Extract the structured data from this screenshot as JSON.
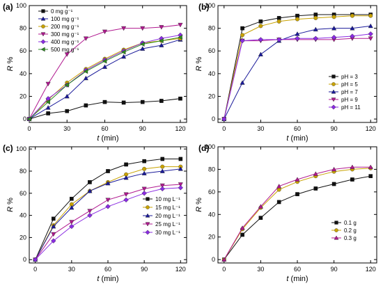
{
  "chart_data": [
    {
      "panel_label": "(a)",
      "type": "line",
      "xlabel": "t (min)",
      "ylabel": "R %",
      "xlim": [
        0,
        125
      ],
      "ylim": [
        -3,
        100
      ],
      "xticks": [
        0,
        30,
        60,
        90,
        120
      ],
      "yticks": [
        0,
        20,
        40,
        60,
        80,
        100
      ],
      "legend_position": "top-left",
      "x": [
        0,
        15,
        30,
        45,
        60,
        75,
        90,
        105,
        120
      ],
      "series": [
        {
          "name": "0 mg g⁻¹",
          "color": "#111111",
          "marker": "square",
          "values": [
            0,
            5,
            7,
            12,
            15,
            14.5,
            15,
            16,
            18
          ]
        },
        {
          "name": "100 mg g⁻¹",
          "color": "#1a1a9a",
          "marker": "triangle-up",
          "values": [
            0,
            10,
            20,
            36,
            46,
            55,
            62,
            65,
            70
          ]
        },
        {
          "name": "200 mg g⁻¹",
          "color": "#c8a200",
          "marker": "circle",
          "values": [
            0,
            17,
            32,
            44,
            53,
            61,
            67,
            69,
            71
          ]
        },
        {
          "name": "300 mg g⁻¹",
          "color": "#b0188f",
          "marker": "triangle-down",
          "values": [
            0,
            31,
            57,
            71,
            77,
            80,
            80,
            81,
            83
          ]
        },
        {
          "name": "400 mg g⁻¹",
          "color": "#8a2be2",
          "marker": "diamond",
          "values": [
            0,
            18,
            30,
            43,
            52,
            60,
            67,
            71,
            74
          ]
        },
        {
          "name": "500 mg g⁻¹",
          "color": "#2e8b20",
          "marker": "triangle-left",
          "values": [
            0,
            15,
            30,
            42,
            51,
            59,
            66,
            69,
            72
          ]
        }
      ]
    },
    {
      "panel_label": "(b)",
      "type": "line",
      "xlabel": "t (min)",
      "ylabel": "R %",
      "xlim": [
        -5,
        125
      ],
      "ylim": [
        -3,
        100
      ],
      "xticks": [
        0,
        30,
        60,
        90,
        120
      ],
      "yticks": [
        0,
        20,
        40,
        60,
        80,
        100
      ],
      "legend_position": "bottom-right",
      "x": [
        0,
        15,
        30,
        45,
        60,
        75,
        90,
        105,
        120
      ],
      "series": [
        {
          "name": "pH = 3",
          "color": "#111111",
          "marker": "square",
          "values": [
            0,
            80,
            86,
            89,
            91,
            92,
            92,
            92,
            92
          ]
        },
        {
          "name": "pH = 5",
          "color": "#c8a200",
          "marker": "circle",
          "values": [
            0,
            74,
            82,
            86,
            88,
            89,
            90,
            91,
            91
          ]
        },
        {
          "name": "pH = 7",
          "color": "#1a1a9a",
          "marker": "triangle-up",
          "values": [
            0,
            32,
            57,
            69,
            75,
            79,
            80,
            80,
            82
          ]
        },
        {
          "name": "pH = 9",
          "color": "#b0188f",
          "marker": "triangle-down",
          "values": [
            0,
            69,
            69,
            70,
            70,
            70,
            70,
            71,
            71
          ]
        },
        {
          "name": "pH = 11",
          "color": "#8a2be2",
          "marker": "diamond",
          "values": [
            0,
            69,
            70,
            70,
            71,
            71,
            72,
            73,
            75
          ]
        }
      ]
    },
    {
      "panel_label": "(c)",
      "type": "line",
      "xlabel": "t (min)",
      "ylabel": "R %",
      "xlim": [
        -5,
        125
      ],
      "ylim": [
        -3,
        102
      ],
      "xticks": [
        0,
        30,
        60,
        90,
        120
      ],
      "yticks": [
        0,
        20,
        40,
        60,
        80,
        100
      ],
      "legend_position": "bottom-right",
      "x": [
        0,
        15,
        30,
        45,
        60,
        75,
        90,
        105,
        120
      ],
      "series": [
        {
          "name": "10 mg L⁻¹",
          "color": "#111111",
          "marker": "square",
          "values": [
            0,
            37,
            55,
            70,
            80,
            86,
            89,
            91,
            91
          ]
        },
        {
          "name": "15 mg L⁻¹",
          "color": "#c8a200",
          "marker": "circle",
          "values": [
            0,
            31,
            50,
            62,
            70,
            77,
            82,
            84,
            84
          ]
        },
        {
          "name": "20 mg L⁻¹",
          "color": "#1a1a9a",
          "marker": "triangle-up",
          "values": [
            0,
            30,
            47,
            62,
            69,
            74,
            78,
            80,
            82
          ]
        },
        {
          "name": "25 mg L⁻¹",
          "color": "#b0188f",
          "marker": "triangle-down",
          "values": [
            0,
            23,
            34,
            44,
            54,
            59,
            64,
            67,
            68
          ]
        },
        {
          "name": "30 mg L⁻¹",
          "color": "#8a2be2",
          "marker": "diamond",
          "values": [
            0,
            17,
            30,
            40,
            48,
            54,
            60,
            64,
            65
          ]
        }
      ]
    },
    {
      "panel_label": "(d)",
      "type": "line",
      "xlabel": "t (min)",
      "ylabel": "R %",
      "xlim": [
        -5,
        125
      ],
      "ylim": [
        -3,
        100
      ],
      "xticks": [
        0,
        30,
        60,
        90,
        120
      ],
      "yticks": [
        0,
        20,
        40,
        60,
        80,
        100
      ],
      "legend_position": "bottom-right",
      "x": [
        0,
        15,
        30,
        45,
        60,
        75,
        90,
        105,
        120
      ],
      "series": [
        {
          "name": "0.1 g",
          "color": "#111111",
          "marker": "square",
          "values": [
            0,
            22,
            37,
            51,
            58,
            63,
            67,
            71,
            74
          ]
        },
        {
          "name": "0.2 g",
          "color": "#c8a200",
          "marker": "circle",
          "values": [
            0,
            27,
            46,
            62,
            69,
            74,
            78,
            80,
            81
          ]
        },
        {
          "name": "0.3 g",
          "color": "#b0188f",
          "marker": "triangle-up",
          "values": [
            0,
            28,
            47,
            65,
            71,
            76,
            80,
            82,
            82
          ]
        }
      ]
    }
  ]
}
